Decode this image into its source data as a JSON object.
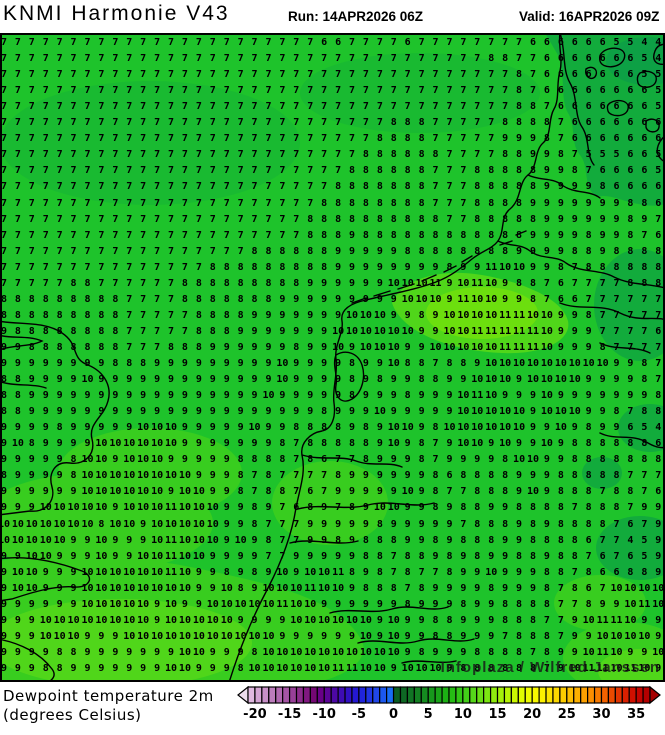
{
  "header": {
    "title": "KNMI Harmonie V43",
    "run": "Run: 14APR2026 06Z",
    "valid": "Valid: 16APR2026 09Z"
  },
  "footer": {
    "parameter_line1": "Dewpoint temperature 2m",
    "parameter_line2": "(degrees Celsius)"
  },
  "watermark": "Infoplaza / Wilfred Janssen",
  "colors": {
    "map_base": "#1ec32b",
    "map_dim": "#19ba31",
    "map_dark": "#12ab3c",
    "map_darker": "#0da045",
    "map_bright2": "#38cd1f",
    "map_bright": "#50d61a",
    "map_brighter": "#6cdf0e",
    "coastline": "#000000",
    "number_color": "#000000"
  },
  "colorbar": {
    "min": -21,
    "max": 37,
    "ticks": [
      -20,
      -15,
      -10,
      -5,
      0,
      5,
      10,
      15,
      20,
      25,
      30,
      35
    ],
    "left_tip": "#ecdcec",
    "right_tip": "#a40000",
    "cell_colors": [
      "#e0b8e0",
      "#d4a4d4",
      "#c890c8",
      "#bc7cbc",
      "#b068b0",
      "#a454a4",
      "#984098",
      "#8c2c8c",
      "#801880",
      "#740874",
      "#680087",
      "#5a0496",
      "#4c08a5",
      "#3e0cb4",
      "#3010c3",
      "#2418d2",
      "#2024dc",
      "#2034e2",
      "#2046e8",
      "#1c58ee",
      "#186cf4",
      "#0a5c22",
      "#0e6824",
      "#117424",
      "#138022",
      "#158c20",
      "#17981c",
      "#19a418",
      "#1cb014",
      "#26bc14",
      "#32c616",
      "#42ce18",
      "#55d61a",
      "#68de16",
      "#7ce612",
      "#90ec0e",
      "#a4f00a",
      "#b8f406",
      "#ccf802",
      "#e0fc00",
      "#eefc00",
      "#f8f800",
      "#fcf000",
      "#fce400",
      "#fcd800",
      "#fccc00",
      "#fcbe00",
      "#fcb000",
      "#fca000",
      "#fc8e00",
      "#f87a00",
      "#f26200",
      "#ea4a00",
      "#e23400",
      "#da2000",
      "#d01000",
      "#c40400",
      "#b40000"
    ]
  },
  "chart_data": {
    "type": "heatmap",
    "model": "KNMI Harmonie V43",
    "run": "14APR2026 06Z",
    "valid": "16APR2026 09Z",
    "parameter": "Dewpoint temperature 2m",
    "unit": "degrees Celsius",
    "value_range_shown": [
      4,
      11
    ],
    "colorbar_ticks": [
      -20,
      -15,
      -10,
      -5,
      0,
      5,
      10,
      15,
      20,
      25,
      30,
      35
    ],
    "grid_rows": [
      "7 7 7 7 7 7 7 7 7 7 7 7 7 7 7 7 7 7 7 7 7 7 7 6 6 7 7 7 7 6 7 7 7 7 7 7 7 7 6 6 6 6 6 6 5 5 4 4",
      "7 7 7 7 7 7 7 7 7 7 7 7 7 7 7 7 7 7 7 7 7 7 7 7 7 7 7 7 7 7 7 7 7 7 7 8 8 7 7 6 6 6 6 6 6 6 5 4",
      "7 7 7 7 7 7 7 7 7 7 7 7 7 7 7 7 7 7 7 7 7 7 7 7 7 7 7 7 7 7 7 7 7 7 7 7 7 8 7 6 6 6 6 6 6 6 5 5",
      "7 7 7 7 7 7 7 7 7 7 7 7 7 7 7 7 7 7 7 7 7 7 7 7 7 7 7 7 7 7 7 7 7 7 7 7 7 8 7 6 6 6 6 6 6 6 6 5",
      "7 7 7 7 7 7 7 7 7 7 7 7 7 7 7 7 7 7 7 7 7 7 7 7 7 7 7 7 7 7 7 7 7 7 7 7 7 8 8 7 6 6 6 6 6 6 6 5",
      "7 7 7 7 7 7 7 7 7 7 7 7 7 7 7 7 7 7 7 7 7 7 7 7 7 7 7 7 8 8 8 7 7 7 7 7 8 8 8 8 7 6 6 6 6 6 6 6",
      "7 7 7 7 7 7 7 7 7 7 7 7 7 7 7 7 7 7 7 7 7 7 7 7 7 7 7 8 8 8 8 7 7 7 7 7 9 9 9 8 7 6 6 6 6 6 6 6",
      "7 7 7 7 7 7 7 7 7 7 7 7 7 7 7 7 7 7 7 7 7 7 7 7 7 7 8 8 8 8 8 8 7 7 7 7 8 8 9 9 8 7 5 5 5 6 6 5",
      "7 7 7 7 7 7 7 7 7 7 7 7 7 7 7 7 7 7 7 7 7 7 7 7 7 8 8 8 8 8 8 7 7 7 8 8 8 8 8 9 9 8 7 6 6 6 6 5",
      "7 7 7 7 7 7 7 7 7 7 7 7 7 7 7 7 7 7 7 7 7 7 7 7 8 8 8 8 8 8 8 7 7 7 8 8 8 8 8 9 9 9 9 8 6 6 6 6",
      "7 7 7 7 7 7 7 7 7 7 7 7 7 7 7 7 7 7 7 7 7 7 7 8 8 8 8 8 8 8 8 7 7 7 8 8 8 8 9 9 9 9 9 9 9 8 8 6",
      "7 7 7 7 7 7 7 7 7 7 7 7 7 7 7 7 7 7 7 7 7 7 8 8 8 8 8 8 8 8 8 8 7 7 8 8 8 8 8 9 9 9 9 9 9 8 9 7",
      "7 7 7 7 7 7 7 7 7 7 7 7 7 7 7 7 7 7 7 7 7 7 8 8 8 9 8 8 8 8 8 8 8 8 8 8 8 8 9 9 9 9 8 9 9 8 7 6",
      "7 7 7 7 7 7 7 7 7 7 7 7 7 7 7 7 7 7 8 8 8 8 8 8 9 9 9 9 9 8 8 8 8 8 8 8 8 9 9 9 9 8 8 9 8 8 8 8",
      "7 7 7 7 7 7 7 7 7 7 7 7 7 7 7 8 8 8 8 8 8 8 8 8 9 9 9 9 9 9 9 9 8 9 9 11 10 10 9 9 8 7 8 8 8 8 8 8",
      "7 7 7 7 7 8 8 7 7 7 7 7 7 8 8 8 8 8 8 8 8 8 9 9 9 9 9 9 10 10 10 11 9 10 11 10 9 8 8 7 6 7 7 7 7 8 8 8",
      "8 8 8 8 8 8 8 8 8 7 7 7 7 8 8 8 8 8 8 8 9 9 9 9 9 9 9 9 9 10 10 10 9 11 10 10 9 9 8 7 6 6 7 7 7 7 7 7",
      "8 8 8 8 8 8 8 8 8 7 7 7 7 7 8 8 8 8 9 9 9 9 9 9 9 10 10 10 9 9 8 9 10 10 10 10 11 11 10 10 9 9 8 7 7 7 7 7",
      "9 8 8 8 8 8 8 8 8 7 7 7 7 7 8 8 8 9 9 9 9 9 9 9 10 10 10 10 10 10 9 9 10 10 11 11 11 11 11 10 9 9 9 7 7 7 7 6",
      "9 9 8 8 8 8 8 8 8 7 7 7 8 8 8 9 9 9 9 9 9 8 9 9 10 9 10 10 10 9 9 10 10 10 10 10 11 11 11 10 9 9 9 8 7 7 7 7",
      "9 9 9 9 9 9 9 9 8 8 8 9 9 9 9 9 9 9 9 9 10 9 9 9 9 8 9 9 10 8 8 7 8 8 9 10 10 10 10 10 10 10 10 10 9 9 8 7",
      "8 8 9 9 9 9 10 9 9 9 9 9 9 9 9 9 9 9 9 9 10 9 9 9 9 8 9 8 9 9 8 8 9 9 10 10 10 9 10 10 10 10 9 9 9 9 8 7",
      "8 8 9 9 9 9 9 9 9 9 9 9 9 9 9 9 9 9 9 10 9 9 9 9 9 8 9 9 9 8 9 9 9 10 11 10 9 9 9 10 9 9 9 9 9 9 9 8",
      "8 8 9 9 9 9 9 9 9 9 9 9 9 9 9 9 9 9 9 9 9 9 9 8 9 9 9 10 9 9 9 9 9 10 10 10 10 10 9 10 10 10 9 9 8 7 8 8",
      "9 9 9 9 8 9 9 9 9 9 10 10 10 9 9 9 9 9 10 9 9 8 8 8 8 9 8 9 10 10 9 8 10 10 10 10 10 10 9 9 10 9 8 9 9 6 5 4",
      "9 10 8 9 9 9 9 10 10 10 10 10 10 9 9 9 9 9 9 9 8 7 8 8 8 8 8 9 10 9 8 7 9 10 10 9 10 9 9 10 9 8 8 8 8 8 8 6",
      "9 9 9 9 9 8 10 10 9 10 10 10 9 9 9 9 9 8 8 8 8 7 8 6 7 7 8 9 9 9 8 7 9 9 9 9 8 10 10 9 9 8 8 8 8 8 8 8",
      "8 9 9 9 9 8 10 10 10 10 10 10 10 10 9 9 9 8 7 8 7 7 7 7 8 9 9 9 9 9 9 8 6 8 8 8 8 9 9 9 8 8 8 8 8 7 7 7",
      "9 9 9 9 9 9 10 10 10 10 10 10 9 10 10 9 9 8 7 8 8 7 6 7 9 9 9 9 9 10 9 8 7 7 8 8 8 9 10 9 8 8 8 7 8 8 7 6",
      "9 9 9 10 10 10 10 10 9 10 10 10 11 10 10 10 9 9 8 9 7 6 8 9 7 8 9 10 10 9 9 8 9 8 8 9 9 8 8 8 8 7 8 8 8 7 9 9",
      "10 10 10 10 10 10 10 8 10 10 9 10 10 10 10 10 9 9 8 7 7 7 9 9 9 9 9 8 9 9 9 9 9 7 8 8 8 9 8 9 8 8 8 8 7 6 7 9",
      "10 10 10 10 10 9 9 10 9 9 9 10 11 10 10 10 9 10 9 8 7 7 9 9 8 9 8 8 8 9 9 8 9 8 8 8 9 9 8 8 8 8 6 7 7 4 5 9",
      "9 9 10 10 9 9 9 10 9 9 10 10 11 10 10 9 9 9 9 7 7 9 9 9 9 9 8 8 7 8 8 9 8 9 8 9 9 8 8 9 8 8 7 6 7 6 5 9",
      "9 10 10 9 9 9 10 10 10 10 10 10 11 10 9 9 8 9 8 9 10 9 10 10 11 8 9 8 7 8 7 7 8 9 9 10 9 9 9 8 8 7 8 6 6 8 8 9",
      "9 10 10 9 9 9 10 10 10 10 10 10 10 10 9 9 10 8 9 10 10 10 11 10 10 9 8 8 8 7 8 9 9 9 9 8 9 9 9 8 7 8 6 7 10 10 10 10",
      "9 9 9 9 9 9 10 10 10 10 10 9 10 9 9 10 10 10 10 10 11 10 10 9 9 9 9 9 9 8 9 9 9 8 9 9 8 8 8 8 7 7 8 9 9 10 11 10",
      "9 9 9 10 10 10 10 10 10 10 10 9 10 10 10 10 10 9 9 9 9 10 10 10 10 10 10 9 10 9 9 8 8 9 9 9 8 8 8 7 7 9 10 11 11 10 9 9",
      "9 9 9 10 10 10 9 9 9 10 10 10 10 10 10 10 10 10 10 10 9 9 9 9 9 9 10 9 10 9 9 8 8 9 9 9 7 8 8 8 7 9 9 10 10 10 10 9",
      "9 9 9 9 8 8 9 9 9 9 9 9 9 10 10 9 9 9 8 10 10 10 10 10 10 10 10 10 10 9 8 9 9 9 8 8 8 8 7 8 9 9 10 11 10 9 9 10",
      "9 9 9 8 8 9 9 9 9 9 9 9 10 10 9 9 9 8 10 10 10 10 10 10 11 11 10 10 9 10 10 10 9 8 8 8 8 8 8 7 9 10 11 11 10 11 10 9",
      "9 9 9 9 9 9 9 10 9 9 9 8 10 10 10 10 10 10 10 10 10 10 10 10 10 11 10 10 10 11 11 10 10 9 9 9 9 9 9 9 9 10 10 10 10 10 9 10"
    ]
  }
}
